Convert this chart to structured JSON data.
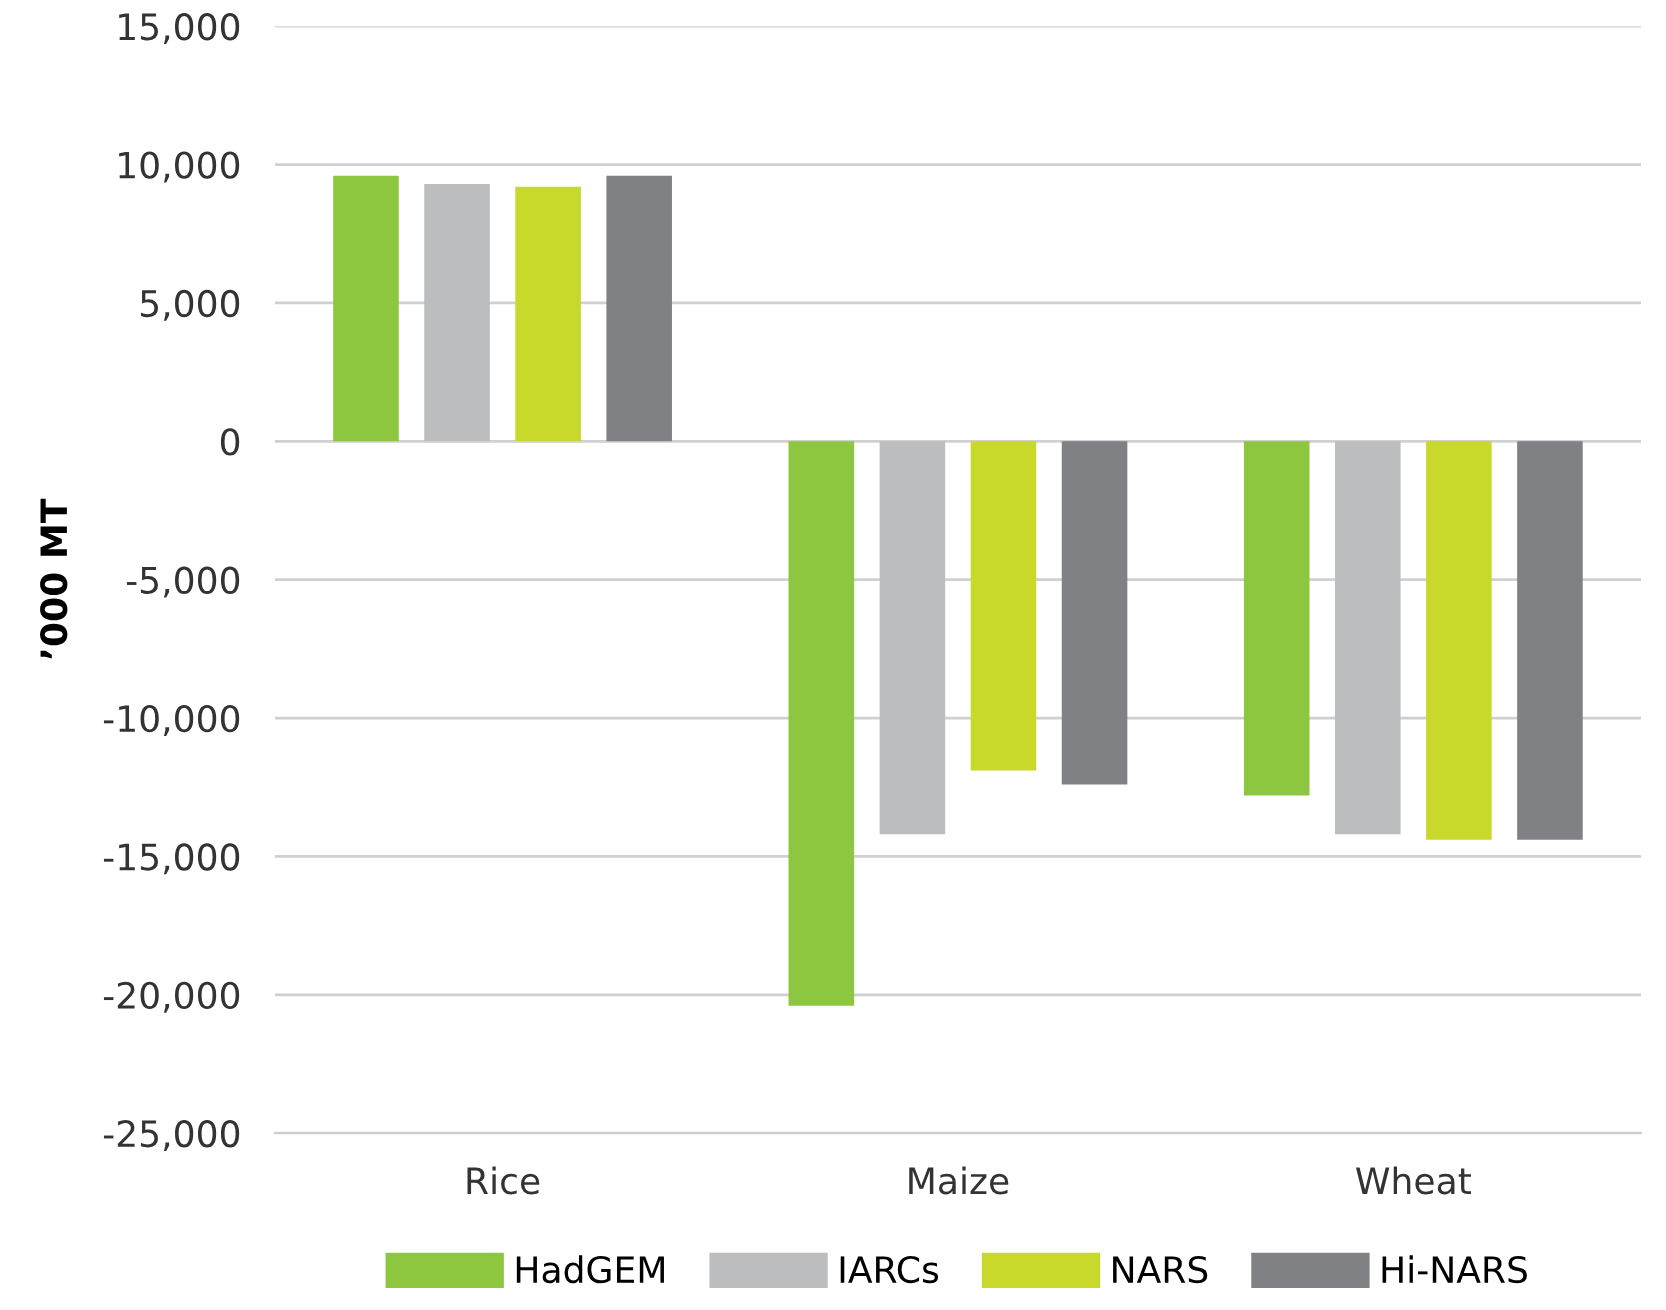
{
  "chart_data": {
    "type": "bar",
    "ylabel": "’000 MT",
    "categories": [
      "Rice",
      "Maize",
      "Wheat"
    ],
    "series": [
      {
        "name": "HadGEM",
        "color": "#8dc63f",
        "values": [
          9600,
          -20400,
          -12800
        ]
      },
      {
        "name": "IARCs",
        "color": "#bcbdbf",
        "values": [
          9300,
          -14200,
          -14200
        ]
      },
      {
        "name": "NARS",
        "color": "#c8d92b",
        "values": [
          9200,
          -11900,
          -14400
        ]
      },
      {
        "name": "Hi-NARS",
        "color": "#808184",
        "values": [
          9600,
          -12400,
          -14400
        ]
      }
    ],
    "ylim": [
      -25000,
      15000
    ],
    "yticks": [
      {
        "value": -25000,
        "label": "-25,000"
      },
      {
        "value": -20000,
        "label": "-20,000"
      },
      {
        "value": -15000,
        "label": "-15,000"
      },
      {
        "value": -10000,
        "label": "-10,000"
      },
      {
        "value": -5000,
        "label": "-5,000"
      },
      0,
      {
        "value": 5000,
        "label": "5,000"
      },
      {
        "value": 10000,
        "label": "10,000"
      },
      {
        "value": 15000,
        "label": "15,000"
      }
    ],
    "grid": "y",
    "legend": "bottom"
  }
}
